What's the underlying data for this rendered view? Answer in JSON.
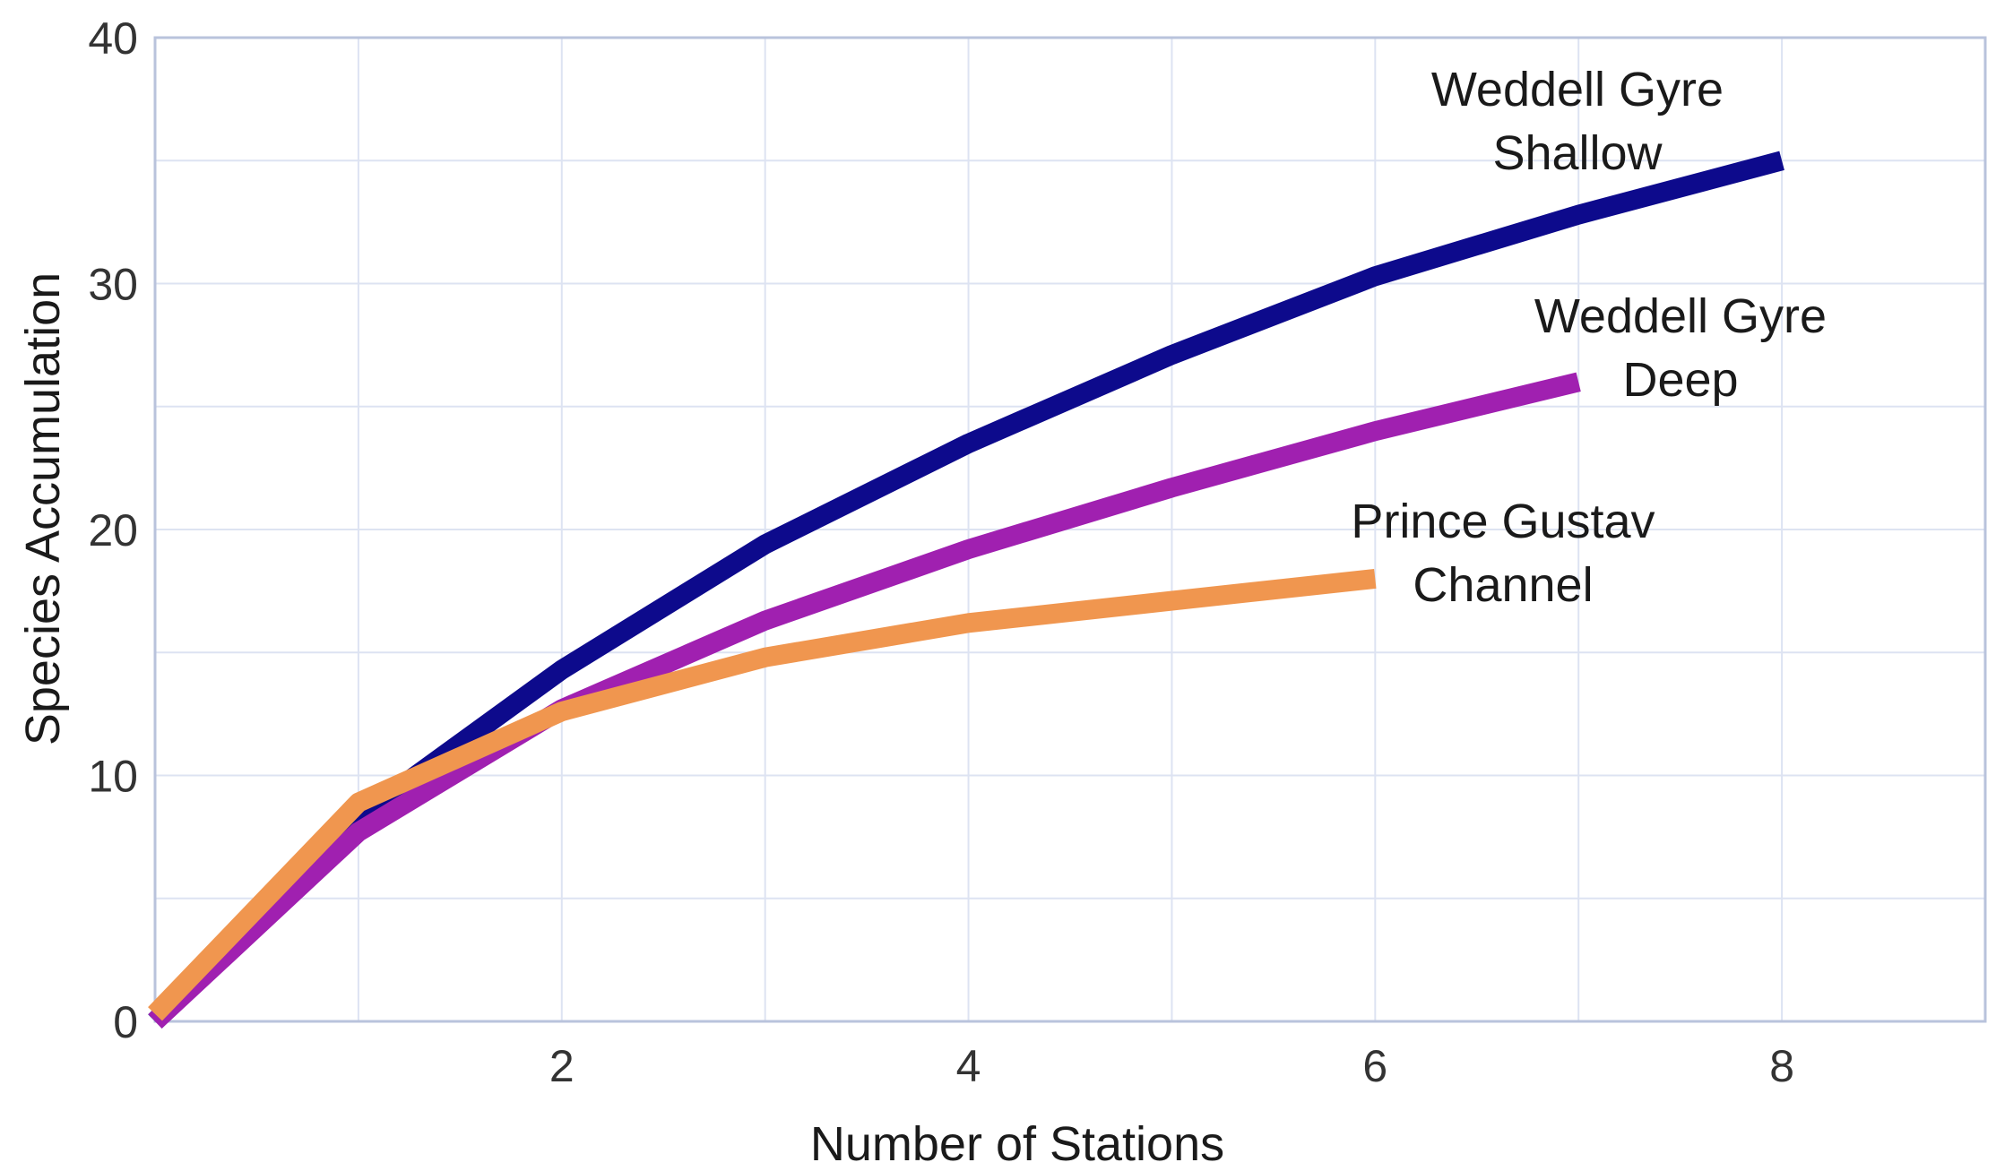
{
  "chart_data": {
    "type": "line",
    "xlabel": "Number of Stations",
    "ylabel": "Species Accumulation",
    "xlim": [
      0,
      9
    ],
    "ylim": [
      0,
      40
    ],
    "x_ticks": [
      2,
      4,
      6,
      8
    ],
    "y_ticks": [
      0,
      10,
      20,
      30,
      40
    ],
    "grid": true,
    "series": [
      {
        "name_lines": [
          "Weddell Gyre",
          "Shallow"
        ],
        "color": "#0d0a8c",
        "x": [
          0,
          1,
          2,
          3,
          4,
          5,
          6,
          7,
          8
        ],
        "y": [
          0,
          8.3,
          14.3,
          19.4,
          23.5,
          27.1,
          30.3,
          32.8,
          35.0
        ]
      },
      {
        "name_lines": [
          "Weddell Gyre",
          "Deep"
        ],
        "color": "#a020b0",
        "x": [
          0,
          1,
          2,
          3,
          4,
          5,
          6,
          7
        ],
        "y": [
          0,
          7.7,
          12.7,
          16.3,
          19.2,
          21.7,
          24.0,
          26.0
        ]
      },
      {
        "name_lines": [
          "Prince Gustav",
          "Channel"
        ],
        "color": "#f0964f",
        "x": [
          0,
          1,
          2,
          3,
          4,
          5,
          6
        ],
        "y": [
          0.3,
          8.9,
          12.6,
          14.8,
          16.2,
          17.1,
          18.0
        ]
      }
    ]
  }
}
